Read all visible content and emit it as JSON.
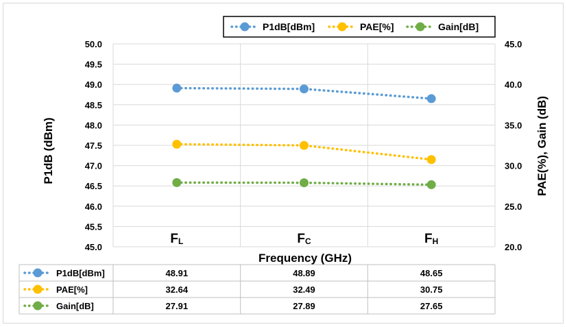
{
  "chart_data": {
    "type": "line",
    "categories": [
      {
        "main": "F",
        "sub": "L"
      },
      {
        "main": "F",
        "sub": "C"
      },
      {
        "main": "F",
        "sub": "H"
      }
    ],
    "series": [
      {
        "name": "P1dB[dBm]",
        "axis": "left",
        "color": "#5b9bd5",
        "values": [
          48.91,
          48.89,
          48.65
        ],
        "labels": [
          "48.91",
          "48.89",
          "48.65"
        ]
      },
      {
        "name": "PAE[%]",
        "axis": "right",
        "color": "#ffc000",
        "values": [
          32.64,
          32.49,
          30.75
        ],
        "labels": [
          "32.64",
          "32.49",
          "30.75"
        ]
      },
      {
        "name": "Gain[dB]",
        "axis": "right",
        "color": "#70ad47",
        "values": [
          27.91,
          27.89,
          27.65
        ],
        "labels": [
          "27.91",
          "27.89",
          "27.65"
        ]
      }
    ],
    "xlabel": "Frequency (GHz)",
    "ylabel": "P1dB (dBm)",
    "y2label": "PAE(%), Gain (dB)",
    "ylim": [
      45.0,
      50.0
    ],
    "y2lim": [
      20.0,
      45.0
    ],
    "yticks": [
      "50.0",
      "49.5",
      "49.0",
      "48.5",
      "48.0",
      "47.5",
      "47.0",
      "46.5",
      "46.0",
      "45.5",
      "45.0"
    ],
    "y2ticks": [
      "45.0",
      "40.0",
      "35.0",
      "30.0",
      "25.0",
      "20.0"
    ],
    "grid": true,
    "legend_position": "top-right",
    "data_table": true
  }
}
